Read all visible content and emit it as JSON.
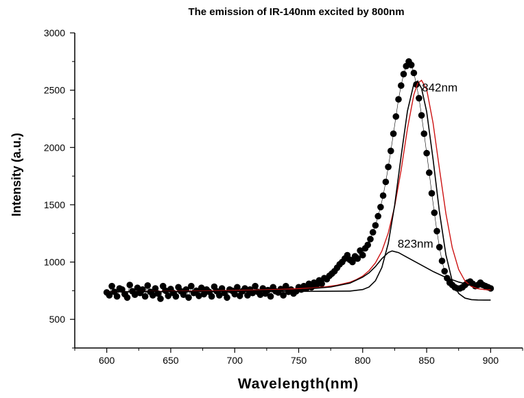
{
  "chart_data": {
    "type": "scatter",
    "title": "The emission of IR-140nm excited by 800nm",
    "xlabel": "Wavelength(nm)",
    "ylabel": "Intensity (a.u.)",
    "xlim": [
      575,
      925
    ],
    "ylim": [
      250,
      3000
    ],
    "xticks": [
      600,
      650,
      700,
      750,
      800,
      850,
      900
    ],
    "yticks": [
      500,
      1000,
      1500,
      2000,
      2500,
      3000
    ],
    "grid": false,
    "legend": "none",
    "series": [
      {
        "kind": "scatter",
        "color": "#000000",
        "x": [
          600,
          602,
          604,
          606,
          608,
          610,
          612,
          614,
          616,
          618,
          620,
          622,
          624,
          626,
          628,
          630,
          632,
          634,
          636,
          638,
          640,
          642,
          644,
          646,
          648,
          650,
          652,
          654,
          656,
          658,
          660,
          662,
          664,
          666,
          668,
          670,
          672,
          674,
          676,
          678,
          680,
          682,
          684,
          686,
          688,
          690,
          692,
          694,
          696,
          698,
          700,
          702,
          704,
          706,
          708,
          710,
          712,
          714,
          716,
          718,
          720,
          722,
          724,
          726,
          728,
          730,
          732,
          734,
          736,
          738,
          740,
          742,
          744,
          746,
          748,
          750,
          752,
          754,
          756,
          758,
          760,
          762,
          764,
          766,
          768,
          770,
          772,
          774,
          776,
          778,
          780,
          782,
          784,
          786,
          788,
          790,
          792,
          794,
          796,
          798,
          800,
          802,
          804,
          806,
          808,
          810,
          812,
          814,
          816,
          818,
          820,
          822,
          824,
          826,
          828,
          830,
          832,
          834,
          836,
          838,
          840,
          842,
          844,
          846,
          848,
          850,
          852,
          854,
          856,
          858,
          860,
          862,
          864,
          866,
          868,
          870,
          872,
          874,
          876,
          878,
          880,
          882,
          884,
          886,
          888,
          890,
          892,
          894,
          896,
          898,
          900
        ],
        "y": [
          735,
          710,
          790,
          740,
          700,
          770,
          760,
          720,
          690,
          800,
          745,
          715,
          775,
          730,
          760,
          700,
          795,
          740,
          710,
          770,
          725,
          680,
          790,
          750,
          705,
          765,
          730,
          700,
          780,
          745,
          715,
          760,
          690,
          790,
          730,
          750,
          705,
          775,
          720,
          760,
          740,
          700,
          785,
          745,
          710,
          770,
          730,
          690,
          760,
          750,
          720,
          780,
          705,
          745,
          770,
          710,
          760,
          730,
          790,
          740,
          715,
          770,
          725,
          755,
          700,
          780,
          745,
          735,
          765,
          710,
          790,
          740,
          760,
          725,
          745,
          780,
          760,
          790,
          770,
          810,
          780,
          820,
          800,
          840,
          810,
          860,
          850,
          880,
          900,
          920,
          950,
          980,
          1000,
          1030,
          1060,
          1020,
          1000,
          1050,
          1030,
          1100,
          1060,
          1120,
          1150,
          1200,
          1260,
          1320,
          1400,
          1480,
          1580,
          1700,
          1830,
          1970,
          2120,
          2270,
          2420,
          2540,
          2640,
          2710,
          2750,
          2720,
          2650,
          2550,
          2430,
          2280,
          2120,
          1950,
          1780,
          1600,
          1430,
          1270,
          1130,
          1010,
          920,
          860,
          820,
          800,
          780,
          770,
          770,
          780,
          800,
          820,
          830,
          810,
          790,
          800,
          820,
          800,
          790,
          780,
          770
        ]
      },
      {
        "kind": "line",
        "color": "#cc1111",
        "x": [
          600,
          620,
          640,
          660,
          680,
          700,
          720,
          740,
          760,
          770,
          780,
          790,
          795,
          800,
          805,
          810,
          815,
          820,
          825,
          830,
          835,
          840,
          843,
          846,
          850,
          855,
          860,
          865,
          870,
          875,
          880,
          885,
          890,
          895,
          900
        ],
        "y": [
          740,
          742,
          744,
          746,
          749,
          752,
          757,
          763,
          773,
          782,
          798,
          824,
          847,
          878,
          925,
          993,
          1096,
          1254,
          1486,
          1801,
          2166,
          2461,
          2560,
          2586,
          2507,
          2214,
          1814,
          1424,
          1125,
          936,
          834,
          786,
          767,
          760,
          757
        ]
      },
      {
        "kind": "line",
        "color": "#000000",
        "x": [
          600,
          700,
          770,
          790,
          800,
          805,
          810,
          815,
          820,
          825,
          830,
          835,
          840,
          843,
          846,
          850,
          855,
          860,
          865,
          870,
          875,
          880,
          885,
          890,
          895,
          900
        ],
        "y": [
          740,
          742,
          745,
          747,
          760,
          782,
          837,
          953,
          1163,
          1495,
          1922,
          2319,
          2555,
          2580,
          2516,
          2312,
          1898,
          1438,
          1064,
          833,
          726,
          685,
          672,
          669,
          668,
          668
        ]
      },
      {
        "kind": "line",
        "color": "#000000",
        "x": [
          600,
          650,
          700,
          750,
          775,
          790,
          800,
          805,
          810,
          815,
          820,
          823,
          828,
          835,
          845,
          855,
          865,
          875,
          885,
          900
        ],
        "y": [
          740,
          742,
          746,
          758,
          782,
          816,
          868,
          906,
          961,
          1030,
          1083,
          1097,
          1083,
          1040,
          979,
          918,
          866,
          826,
          796,
          770
        ]
      }
    ],
    "annotations": [
      {
        "text": "842nm",
        "x": 842,
        "y": 2490
      },
      {
        "text": "823nm",
        "x": 823,
        "y": 1125
      }
    ]
  }
}
